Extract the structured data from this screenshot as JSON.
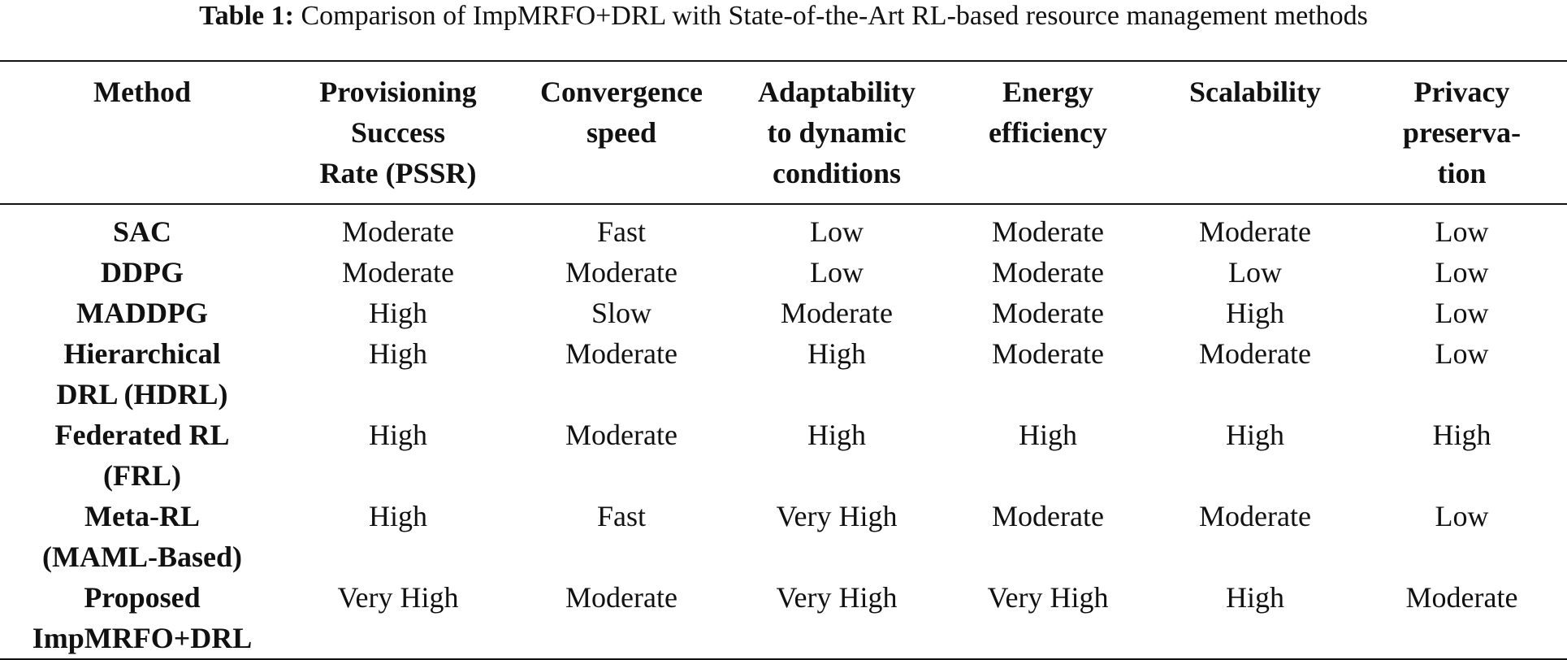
{
  "caption": {
    "label": "Table 1:",
    "text": "Comparison of ImpMRFO+DRL with State-of-the-Art RL-based resource management methods"
  },
  "table": {
    "headers": [
      [
        "Method"
      ],
      [
        "Provisioning",
        "Success",
        "Rate (PSSR)"
      ],
      [
        "Convergence",
        "speed"
      ],
      [
        "Adaptability",
        "to dynamic",
        "conditions"
      ],
      [
        "Energy",
        "efficiency"
      ],
      [
        "Scalability"
      ],
      [
        "Privacy",
        "preserva-",
        "tion"
      ]
    ],
    "rows": [
      {
        "method": [
          "SAC"
        ],
        "cells": [
          "Moderate",
          "Fast",
          "Low",
          "Moderate",
          "Moderate",
          "Low"
        ]
      },
      {
        "method": [
          "DDPG"
        ],
        "cells": [
          "Moderate",
          "Moderate",
          "Low",
          "Moderate",
          "Low",
          "Low"
        ]
      },
      {
        "method": [
          "MADDPG"
        ],
        "cells": [
          "High",
          "Slow",
          "Moderate",
          "Moderate",
          "High",
          "Low"
        ]
      },
      {
        "method": [
          "Hierarchical",
          "DRL (HDRL)"
        ],
        "cells": [
          "High",
          "Moderate",
          "High",
          "Moderate",
          "Moderate",
          "Low"
        ]
      },
      {
        "method": [
          "Federated RL",
          "(FRL)"
        ],
        "cells": [
          "High",
          "Moderate",
          "High",
          "High",
          "High",
          "High"
        ]
      },
      {
        "method": [
          "Meta-RL",
          "(MAML-Based)"
        ],
        "cells": [
          "High",
          "Fast",
          "Very High",
          "Moderate",
          "Moderate",
          "Low"
        ]
      },
      {
        "method": [
          "Proposed",
          "ImpMRFO+DRL"
        ],
        "cells": [
          "Very High",
          "Moderate",
          "Very High",
          "Very High",
          "High",
          "Moderate"
        ]
      }
    ]
  }
}
